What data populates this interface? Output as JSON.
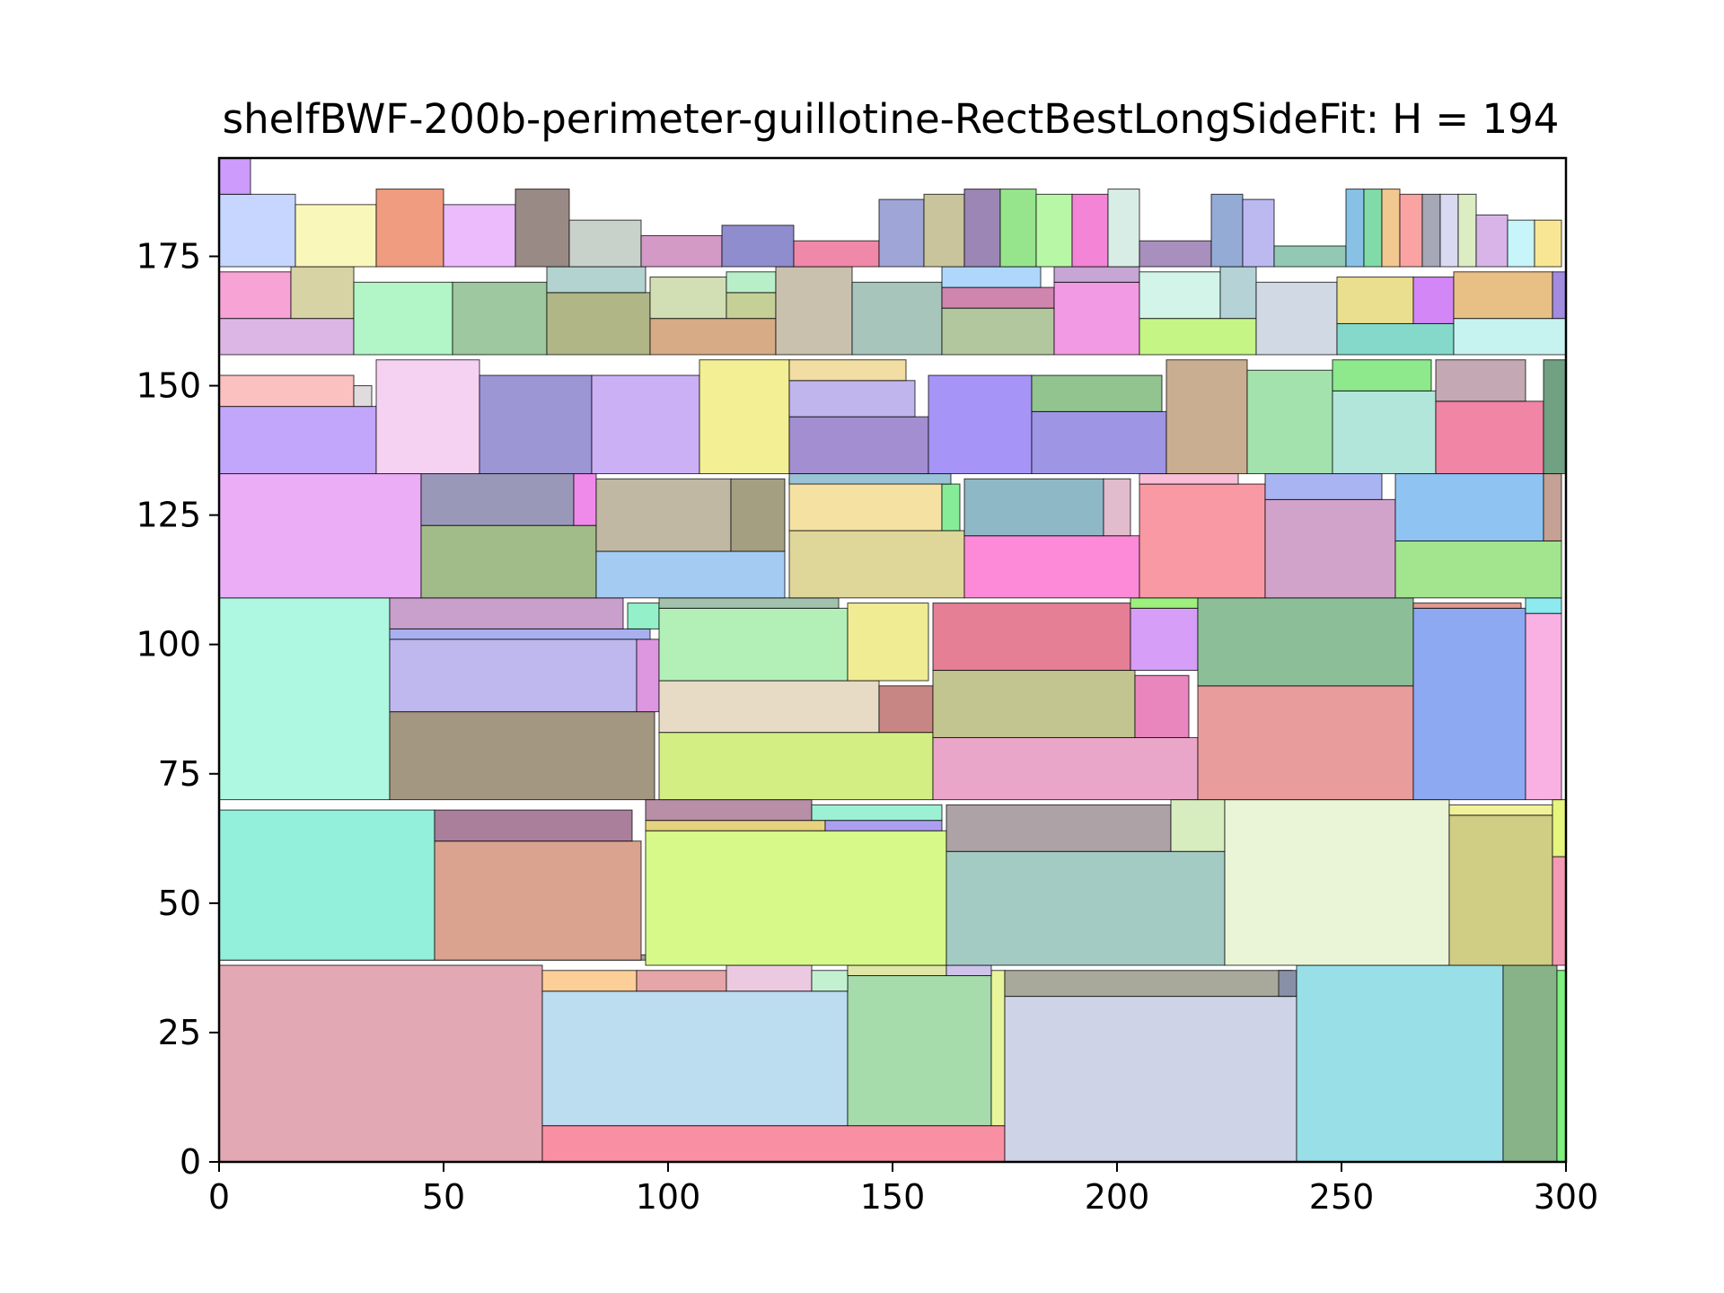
{
  "chart_data": {
    "type": "rectangle-packing",
    "title": "shelfBWF-200b-perimeter-guillotine-RectBestLongSideFit: H = 194",
    "xlim": [
      0,
      300
    ],
    "ylim": [
      0,
      194
    ],
    "xticks": [
      "0",
      "50",
      "100",
      "150",
      "200",
      "250",
      "300"
    ],
    "yticks": [
      "0",
      "25",
      "50",
      "75",
      "100",
      "125",
      "150",
      "175"
    ],
    "xtick_values": [
      0,
      50,
      100,
      150,
      200,
      250,
      300
    ],
    "ytick_values": [
      0,
      25,
      50,
      75,
      100,
      125,
      150,
      175
    ],
    "grid": false,
    "legend": "none",
    "rects": [
      {
        "x": 0,
        "y": 0,
        "w": 72,
        "h": 38,
        "color": "#e2a8b4"
      },
      {
        "x": 72,
        "y": 0,
        "w": 103,
        "h": 7,
        "color": "#f98fa3"
      },
      {
        "x": 72,
        "y": 7,
        "w": 68,
        "h": 26,
        "color": "#bcdcef"
      },
      {
        "x": 140,
        "y": 7,
        "w": 32,
        "h": 29,
        "color": "#a6dbab"
      },
      {
        "x": 172,
        "y": 7,
        "w": 3,
        "h": 30,
        "color": "#e8f59a"
      },
      {
        "x": 72,
        "y": 33,
        "w": 21,
        "h": 4,
        "color": "#fbcf97"
      },
      {
        "x": 93,
        "y": 33,
        "w": 20,
        "h": 4,
        "color": "#e6a5a9"
      },
      {
        "x": 113,
        "y": 33,
        "w": 19,
        "h": 5,
        "color": "#ebc9e0"
      },
      {
        "x": 132,
        "y": 33,
        "w": 8,
        "h": 4,
        "color": "#c4f0d2"
      },
      {
        "x": 140,
        "y": 36,
        "w": 22,
        "h": 2,
        "color": "#e0e6a6"
      },
      {
        "x": 162,
        "y": 36,
        "w": 10,
        "h": 2,
        "color": "#cfc2eb"
      },
      {
        "x": 175,
        "y": 0,
        "w": 65,
        "h": 32,
        "color": "#cfd3e7"
      },
      {
        "x": 175,
        "y": 32,
        "w": 64,
        "h": 5,
        "color": "#a9a99b"
      },
      {
        "x": 236,
        "y": 32,
        "w": 4,
        "h": 5,
        "color": "#8890a8"
      },
      {
        "x": 240,
        "y": 0,
        "w": 46,
        "h": 38,
        "color": "#98dfe8"
      },
      {
        "x": 286,
        "y": 0,
        "w": 12,
        "h": 38,
        "color": "#88b388"
      },
      {
        "x": 298,
        "y": 0,
        "w": 2,
        "h": 37,
        "color": "#7ef07e"
      },
      {
        "x": 0,
        "y": 39,
        "w": 95,
        "h": 1,
        "color": "#a7a2a0"
      },
      {
        "x": 0,
        "y": 39,
        "w": 48,
        "h": 29,
        "color": "#93f0da"
      },
      {
        "x": 48,
        "y": 39,
        "w": 46,
        "h": 23,
        "color": "#daa390"
      },
      {
        "x": 48,
        "y": 62,
        "w": 44,
        "h": 6,
        "color": "#a97f9c"
      },
      {
        "x": 95,
        "y": 38,
        "w": 67,
        "h": 26,
        "color": "#d6f98a"
      },
      {
        "x": 95,
        "y": 64,
        "w": 40,
        "h": 2,
        "color": "#e6d27f"
      },
      {
        "x": 135,
        "y": 64,
        "w": 26,
        "h": 2,
        "color": "#ad9ff0"
      },
      {
        "x": 95,
        "y": 66,
        "w": 37,
        "h": 4,
        "color": "#b88fa6"
      },
      {
        "x": 132,
        "y": 66,
        "w": 29,
        "h": 3,
        "color": "#9cf0d4"
      },
      {
        "x": 162,
        "y": 38,
        "w": 62,
        "h": 22,
        "color": "#a3cbc3"
      },
      {
        "x": 162,
        "y": 60,
        "w": 50,
        "h": 9,
        "color": "#ada3a6"
      },
      {
        "x": 212,
        "y": 60,
        "w": 12,
        "h": 10,
        "color": "#d8edbf"
      },
      {
        "x": 224,
        "y": 38,
        "w": 50,
        "h": 32,
        "color": "#e9f5d6"
      },
      {
        "x": 274,
        "y": 38,
        "w": 23,
        "h": 29,
        "color": "#d0cd84"
      },
      {
        "x": 274,
        "y": 67,
        "w": 23,
        "h": 2,
        "color": "#f1f19a"
      },
      {
        "x": 297,
        "y": 38,
        "w": 3,
        "h": 21,
        "color": "#f39ab4"
      },
      {
        "x": 297,
        "y": 59,
        "w": 3,
        "h": 11,
        "color": "#e6f57e"
      },
      {
        "x": 0,
        "y": 70,
        "w": 38,
        "h": 39,
        "color": "#aef7e0"
      },
      {
        "x": 38,
        "y": 70,
        "w": 59,
        "h": 17,
        "color": "#a39781"
      },
      {
        "x": 38,
        "y": 87,
        "w": 55,
        "h": 14,
        "color": "#bfb8ee"
      },
      {
        "x": 93,
        "y": 87,
        "w": 5,
        "h": 14,
        "color": "#dc97e0"
      },
      {
        "x": 38,
        "y": 101,
        "w": 58,
        "h": 2,
        "color": "#a8b0f0"
      },
      {
        "x": 38,
        "y": 103,
        "w": 52,
        "h": 6,
        "color": "#c99fcc"
      },
      {
        "x": 91,
        "y": 103,
        "w": 7,
        "h": 5,
        "color": "#93f0c8"
      },
      {
        "x": 98,
        "y": 70,
        "w": 61,
        "h": 13,
        "color": "#d3ef84"
      },
      {
        "x": 98,
        "y": 83,
        "w": 49,
        "h": 10,
        "color": "#e7dbc5"
      },
      {
        "x": 147,
        "y": 83,
        "w": 12,
        "h": 9,
        "color": "#c78684"
      },
      {
        "x": 98,
        "y": 93,
        "w": 42,
        "h": 14,
        "color": "#b2f0b7"
      },
      {
        "x": 140,
        "y": 93,
        "w": 18,
        "h": 15,
        "color": "#f0ec93"
      },
      {
        "x": 98,
        "y": 107,
        "w": 40,
        "h": 2,
        "color": "#a3c2ae"
      },
      {
        "x": 159,
        "y": 70,
        "w": 59,
        "h": 12,
        "color": "#eaa6c8"
      },
      {
        "x": 159,
        "y": 82,
        "w": 45,
        "h": 13,
        "color": "#c3c590"
      },
      {
        "x": 204,
        "y": 82,
        "w": 12,
        "h": 12,
        "color": "#e986bd"
      },
      {
        "x": 159,
        "y": 95,
        "w": 44,
        "h": 13,
        "color": "#e57f96"
      },
      {
        "x": 203,
        "y": 95,
        "w": 15,
        "h": 12,
        "color": "#d69ef7"
      },
      {
        "x": 203,
        "y": 107,
        "w": 15,
        "h": 2,
        "color": "#9ef07e"
      },
      {
        "x": 218,
        "y": 70,
        "w": 48,
        "h": 22,
        "color": "#e89c9c"
      },
      {
        "x": 218,
        "y": 92,
        "w": 48,
        "h": 17,
        "color": "#8cbf98"
      },
      {
        "x": 266,
        "y": 70,
        "w": 25,
        "h": 37,
        "color": "#8ca9f2"
      },
      {
        "x": 266,
        "y": 107,
        "w": 24,
        "h": 1,
        "color": "#e39a90"
      },
      {
        "x": 291,
        "y": 70,
        "w": 8,
        "h": 36,
        "color": "#f9b0e3"
      },
      {
        "x": 291,
        "y": 106,
        "w": 8,
        "h": 3,
        "color": "#8deaef"
      },
      {
        "x": 0,
        "y": 109,
        "w": 45,
        "h": 24,
        "color": "#ecadf7"
      },
      {
        "x": 45,
        "y": 109,
        "w": 39,
        "h": 14,
        "color": "#a1bb89"
      },
      {
        "x": 45,
        "y": 123,
        "w": 34,
        "h": 10,
        "color": "#9a98b8"
      },
      {
        "x": 79,
        "y": 123,
        "w": 5,
        "h": 10,
        "color": "#f08aea"
      },
      {
        "x": 84,
        "y": 109,
        "w": 42,
        "h": 9,
        "color": "#a4ccf2"
      },
      {
        "x": 84,
        "y": 118,
        "w": 30,
        "h": 14,
        "color": "#c1b8a3"
      },
      {
        "x": 114,
        "y": 118,
        "w": 12,
        "h": 14,
        "color": "#a59f82"
      },
      {
        "x": 127,
        "y": 109,
        "w": 39,
        "h": 13,
        "color": "#dfd699"
      },
      {
        "x": 127,
        "y": 122,
        "w": 34,
        "h": 10,
        "color": "#f5e2a3"
      },
      {
        "x": 161,
        "y": 122,
        "w": 4,
        "h": 9,
        "color": "#86ec98"
      },
      {
        "x": 127,
        "y": 131,
        "w": 36,
        "h": 2,
        "color": "#9bc3d7"
      },
      {
        "x": 166,
        "y": 109,
        "w": 39,
        "h": 12,
        "color": "#fc8ad8"
      },
      {
        "x": 166,
        "y": 121,
        "w": 31,
        "h": 11,
        "color": "#8fb8c6"
      },
      {
        "x": 197,
        "y": 121,
        "w": 6,
        "h": 11,
        "color": "#e0bccc"
      },
      {
        "x": 205,
        "y": 109,
        "w": 28,
        "h": 22,
        "color": "#f899a4"
      },
      {
        "x": 205,
        "y": 131,
        "w": 22,
        "h": 2,
        "color": "#f9bfd8"
      },
      {
        "x": 233,
        "y": 109,
        "w": 29,
        "h": 19,
        "color": "#d2a3ca"
      },
      {
        "x": 233,
        "y": 128,
        "w": 26,
        "h": 5,
        "color": "#a9b5f2"
      },
      {
        "x": 262,
        "y": 109,
        "w": 37,
        "h": 11,
        "color": "#a3e48e"
      },
      {
        "x": 262,
        "y": 120,
        "w": 33,
        "h": 13,
        "color": "#8fc3f2"
      },
      {
        "x": 295,
        "y": 120,
        "w": 4,
        "h": 13,
        "color": "#c5a094"
      },
      {
        "x": 0,
        "y": 133,
        "w": 35,
        "h": 13,
        "color": "#c2a6fc"
      },
      {
        "x": 0,
        "y": 146,
        "w": 30,
        "h": 6,
        "color": "#fbc0c0"
      },
      {
        "x": 30,
        "y": 146,
        "w": 4,
        "h": 4,
        "color": "#e0dbdd"
      },
      {
        "x": 35,
        "y": 133,
        "w": 23,
        "h": 22,
        "color": "#f5d2f2"
      },
      {
        "x": 58,
        "y": 133,
        "w": 25,
        "h": 19,
        "color": "#9c96d5"
      },
      {
        "x": 83,
        "y": 133,
        "w": 24,
        "h": 19,
        "color": "#cbb0f5"
      },
      {
        "x": 107,
        "y": 133,
        "w": 20,
        "h": 22,
        "color": "#f2ef94"
      },
      {
        "x": 127,
        "y": 133,
        "w": 31,
        "h": 11,
        "color": "#a28ed0"
      },
      {
        "x": 127,
        "y": 144,
        "w": 28,
        "h": 7,
        "color": "#c0b5ed"
      },
      {
        "x": 127,
        "y": 151,
        "w": 26,
        "h": 4,
        "color": "#f2dda2"
      },
      {
        "x": 158,
        "y": 133,
        "w": 23,
        "h": 19,
        "color": "#a694f7"
      },
      {
        "x": 181,
        "y": 133,
        "w": 30,
        "h": 12,
        "color": "#9e95e5"
      },
      {
        "x": 181,
        "y": 145,
        "w": 29,
        "h": 7,
        "color": "#91c48e"
      },
      {
        "x": 211,
        "y": 133,
        "w": 18,
        "h": 22,
        "color": "#c9ae91"
      },
      {
        "x": 229,
        "y": 133,
        "w": 19,
        "h": 20,
        "color": "#a3e2ad"
      },
      {
        "x": 248,
        "y": 133,
        "w": 23,
        "h": 16,
        "color": "#b2e6da"
      },
      {
        "x": 248,
        "y": 149,
        "w": 22,
        "h": 6,
        "color": "#8ee88c"
      },
      {
        "x": 271,
        "y": 133,
        "w": 24,
        "h": 14,
        "color": "#f085a6"
      },
      {
        "x": 271,
        "y": 147,
        "w": 20,
        "h": 8,
        "color": "#c4a8b4"
      },
      {
        "x": 295,
        "y": 133,
        "w": 5,
        "h": 22,
        "color": "#6fa182"
      },
      {
        "x": 0,
        "y": 156,
        "w": 30,
        "h": 7,
        "color": "#dcb7e5"
      },
      {
        "x": 0,
        "y": 163,
        "w": 16,
        "h": 9,
        "color": "#f7a3d6"
      },
      {
        "x": 16,
        "y": 163,
        "w": 14,
        "h": 10,
        "color": "#d7d3a5"
      },
      {
        "x": 30,
        "y": 156,
        "w": 22,
        "h": 14,
        "color": "#b2f5c6"
      },
      {
        "x": 52,
        "y": 156,
        "w": 21,
        "h": 14,
        "color": "#9ec89f"
      },
      {
        "x": 73,
        "y": 156,
        "w": 23,
        "h": 12,
        "color": "#b0b686"
      },
      {
        "x": 73,
        "y": 168,
        "w": 22,
        "h": 5,
        "color": "#b2d3d0"
      },
      {
        "x": 96,
        "y": 156,
        "w": 28,
        "h": 7,
        "color": "#d6ab85"
      },
      {
        "x": 96,
        "y": 163,
        "w": 17,
        "h": 8,
        "color": "#d2dfb5"
      },
      {
        "x": 113,
        "y": 163,
        "w": 11,
        "h": 5,
        "color": "#c5d096"
      },
      {
        "x": 113,
        "y": 168,
        "w": 11,
        "h": 4,
        "color": "#b9efc8"
      },
      {
        "x": 124,
        "y": 156,
        "w": 17,
        "h": 17,
        "color": "#c9c1ae"
      },
      {
        "x": 141,
        "y": 156,
        "w": 20,
        "h": 14,
        "color": "#a7c5bb"
      },
      {
        "x": 161,
        "y": 156,
        "w": 25,
        "h": 9,
        "color": "#b2c79e"
      },
      {
        "x": 161,
        "y": 165,
        "w": 25,
        "h": 4,
        "color": "#cf85ad"
      },
      {
        "x": 161,
        "y": 169,
        "w": 22,
        "h": 4,
        "color": "#aed7fb"
      },
      {
        "x": 186,
        "y": 156,
        "w": 19,
        "h": 14,
        "color": "#f29ae3"
      },
      {
        "x": 186,
        "y": 170,
        "w": 19,
        "h": 3,
        "color": "#c6a6d4"
      },
      {
        "x": 205,
        "y": 156,
        "w": 26,
        "h": 7,
        "color": "#c5f585"
      },
      {
        "x": 205,
        "y": 163,
        "w": 18,
        "h": 9,
        "color": "#d3f5e9"
      },
      {
        "x": 223,
        "y": 163,
        "w": 8,
        "h": 10,
        "color": "#b5d3d6"
      },
      {
        "x": 231,
        "y": 156,
        "w": 18,
        "h": 14,
        "color": "#d1dae4"
      },
      {
        "x": 249,
        "y": 156,
        "w": 26,
        "h": 6,
        "color": "#84d9ca"
      },
      {
        "x": 249,
        "y": 162,
        "w": 17,
        "h": 9,
        "color": "#e9df8e"
      },
      {
        "x": 266,
        "y": 162,
        "w": 9,
        "h": 9,
        "color": "#d386f5"
      },
      {
        "x": 275,
        "y": 156,
        "w": 25,
        "h": 7,
        "color": "#c6f3f0"
      },
      {
        "x": 275,
        "y": 163,
        "w": 22,
        "h": 9,
        "color": "#e8c086"
      },
      {
        "x": 297,
        "y": 163,
        "w": 3,
        "h": 9,
        "color": "#a38be0"
      },
      {
        "x": 0,
        "y": 173,
        "w": 17,
        "h": 14,
        "color": "#c6d6fe"
      },
      {
        "x": 17,
        "y": 173,
        "w": 18,
        "h": 12,
        "color": "#faf7bb"
      },
      {
        "x": 35,
        "y": 173,
        "w": 15,
        "h": 15,
        "color": "#ef9c80"
      },
      {
        "x": 50,
        "y": 173,
        "w": 16,
        "h": 12,
        "color": "#ebbbfc"
      },
      {
        "x": 66,
        "y": 173,
        "w": 12,
        "h": 15,
        "color": "#9a8a86"
      },
      {
        "x": 78,
        "y": 173,
        "w": 16,
        "h": 9,
        "color": "#c8d1ca"
      },
      {
        "x": 94,
        "y": 173,
        "w": 18,
        "h": 6,
        "color": "#d39ac6"
      },
      {
        "x": 112,
        "y": 173,
        "w": 16,
        "h": 8,
        "color": "#8f8dce"
      },
      {
        "x": 128,
        "y": 173,
        "w": 19,
        "h": 5,
        "color": "#f088aa"
      },
      {
        "x": 147,
        "y": 173,
        "w": 10,
        "h": 13,
        "color": "#a0a5d8"
      },
      {
        "x": 157,
        "y": 173,
        "w": 9,
        "h": 14,
        "color": "#c9c49c"
      },
      {
        "x": 166,
        "y": 173,
        "w": 8,
        "h": 15,
        "color": "#9c86b5"
      },
      {
        "x": 174,
        "y": 173,
        "w": 8,
        "h": 15,
        "color": "#96e58c"
      },
      {
        "x": 182,
        "y": 173,
        "w": 8,
        "h": 14,
        "color": "#b7f7a6"
      },
      {
        "x": 190,
        "y": 173,
        "w": 8,
        "h": 14,
        "color": "#f384d6"
      },
      {
        "x": 198,
        "y": 173,
        "w": 7,
        "h": 15,
        "color": "#d9ede7"
      },
      {
        "x": 205,
        "y": 173,
        "w": 16,
        "h": 5,
        "color": "#a88fbd"
      },
      {
        "x": 221,
        "y": 173,
        "w": 7,
        "h": 14,
        "color": "#94abd6"
      },
      {
        "x": 228,
        "y": 173,
        "w": 7,
        "h": 13,
        "color": "#bcb8f0"
      },
      {
        "x": 235,
        "y": 173,
        "w": 16,
        "h": 4,
        "color": "#93c9b4"
      },
      {
        "x": 251,
        "y": 173,
        "w": 4,
        "h": 15,
        "color": "#88c1e5"
      },
      {
        "x": 255,
        "y": 173,
        "w": 4,
        "h": 15,
        "color": "#80dba8"
      },
      {
        "x": 259,
        "y": 173,
        "w": 4,
        "h": 15,
        "color": "#f1c890"
      },
      {
        "x": 263,
        "y": 173,
        "w": 5,
        "h": 14,
        "color": "#fba3a3"
      },
      {
        "x": 268,
        "y": 173,
        "w": 4,
        "h": 14,
        "color": "#a6a8b8"
      },
      {
        "x": 272,
        "y": 173,
        "w": 4,
        "h": 14,
        "color": "#d9d9f2"
      },
      {
        "x": 276,
        "y": 173,
        "w": 4,
        "h": 14,
        "color": "#dcedc3"
      },
      {
        "x": 280,
        "y": 173,
        "w": 7,
        "h": 10,
        "color": "#d8b4e8"
      },
      {
        "x": 287,
        "y": 173,
        "w": 6,
        "h": 9,
        "color": "#c7f5f9"
      },
      {
        "x": 293,
        "y": 173,
        "w": 6,
        "h": 9,
        "color": "#f8e694"
      },
      {
        "x": 0,
        "y": 187,
        "w": 7,
        "h": 7,
        "color": "#cd9bfb"
      }
    ]
  }
}
